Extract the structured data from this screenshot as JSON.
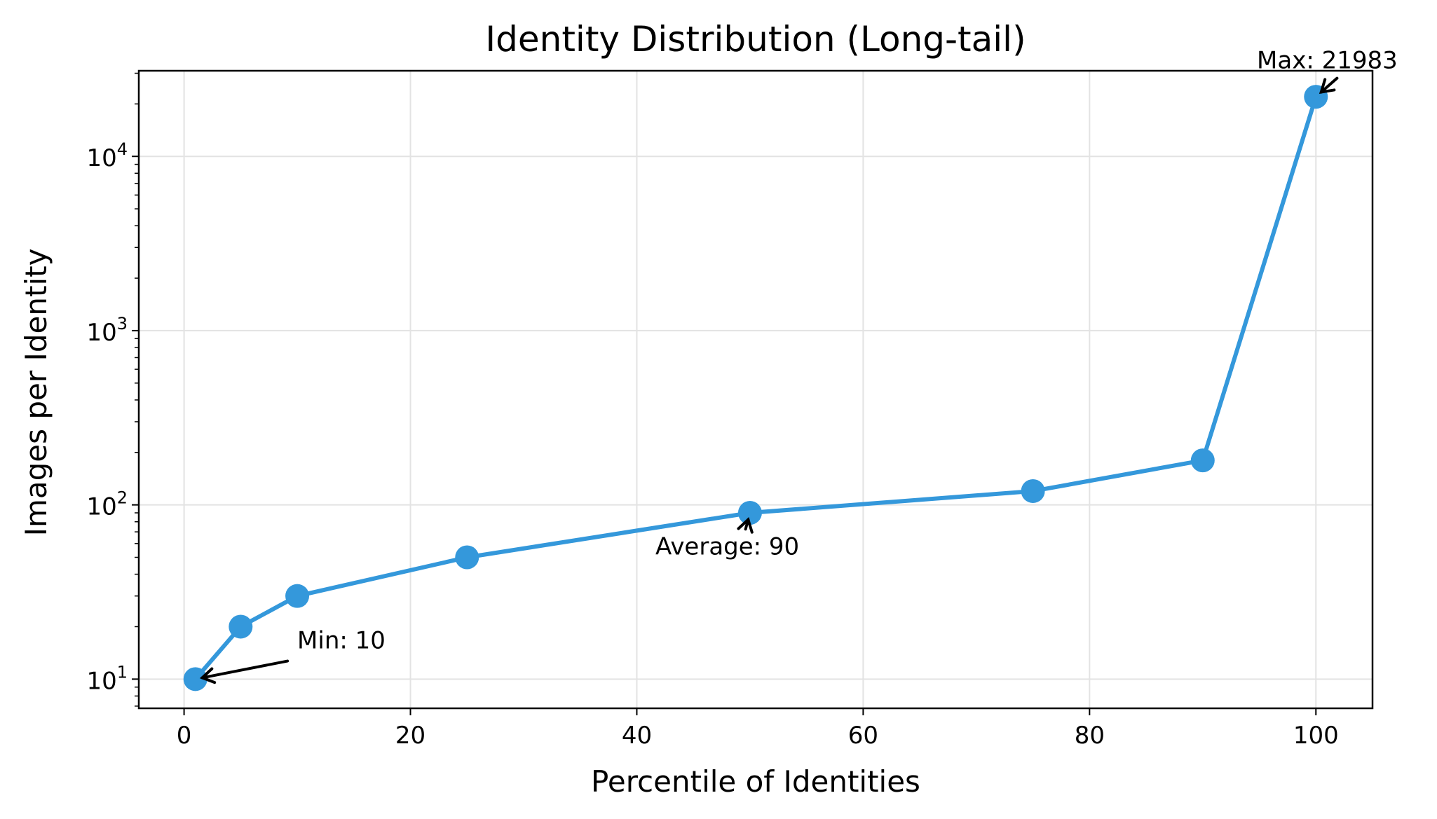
{
  "chart_data": {
    "type": "line",
    "title": "Identity Distribution (Long-tail)",
    "xlabel": "Percentile of Identities",
    "ylabel": "Images per Identity",
    "y_scale": "log",
    "xlim": [
      -4,
      105
    ],
    "ylim": [
      6.8,
      31000
    ],
    "x_ticks": [
      0,
      20,
      40,
      60,
      80,
      100
    ],
    "y_ticks": [
      {
        "value": 10,
        "base": "10",
        "exp": "1"
      },
      {
        "value": 100,
        "base": "10",
        "exp": "2"
      },
      {
        "value": 1000,
        "base": "10",
        "exp": "3"
      },
      {
        "value": 10000,
        "base": "10",
        "exp": "4"
      }
    ],
    "grid": true,
    "line_color": "#3498db",
    "series": [
      {
        "x": [
          1,
          5,
          10,
          25,
          50,
          75,
          90,
          100
        ],
        "y": [
          10,
          20,
          30,
          50,
          90,
          120,
          180,
          21983
        ]
      }
    ],
    "annotations": [
      {
        "text": "Min: 10",
        "x": 1,
        "y": 10,
        "text_x": 10,
        "text_y": 15,
        "anchor": "start"
      },
      {
        "text": "Average: 90",
        "x": 50,
        "y": 90,
        "text_x": 48,
        "text_y": 52,
        "anchor": "middle"
      },
      {
        "text": "Max: 21983",
        "x": 100,
        "y": 21983,
        "text_x": 101,
        "text_y": 32000,
        "anchor": "middle"
      }
    ]
  }
}
